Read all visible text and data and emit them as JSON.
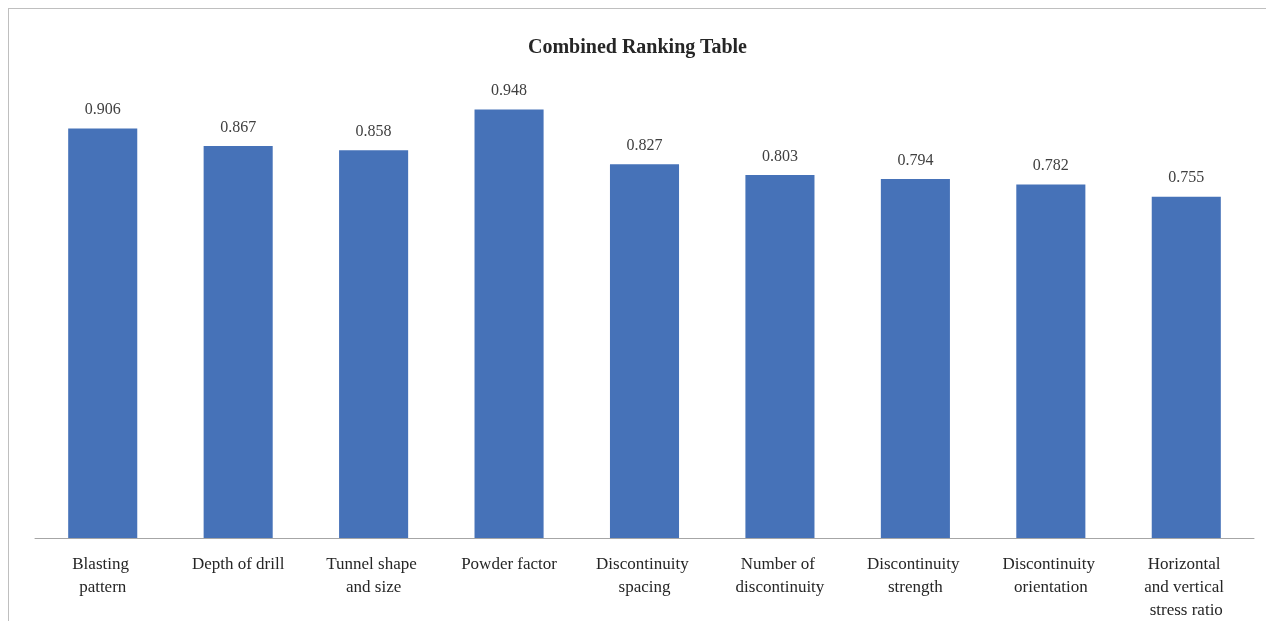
{
  "chart_data": {
    "type": "bar",
    "title": "Combined Ranking Table",
    "categories": [
      "Blasting pattern",
      "Depth of drill",
      "Tunnel shape and size",
      "Powder factor",
      "Discontinuity spacing",
      "Number of discontinuity",
      "Discontinuity strength",
      "Discontinuity orientation",
      "Horizontal and vertical stress ratio"
    ],
    "values": [
      0.906,
      0.867,
      0.858,
      0.948,
      0.827,
      0.803,
      0.794,
      0.782,
      0.755
    ],
    "color": "#4672b8",
    "data_labels": true,
    "tick_labels": "x",
    "grid": false
  }
}
